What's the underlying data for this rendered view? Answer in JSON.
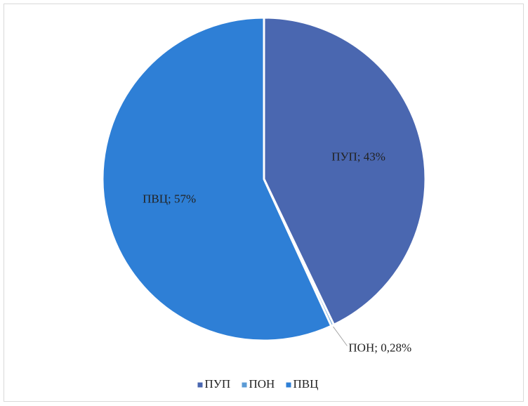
{
  "chart_data": {
    "type": "pie",
    "categories": [
      "ПУП",
      "ПОН",
      "ПВЦ"
    ],
    "values": [
      43,
      0.28,
      57
    ],
    "value_labels": [
      "ПУП; 43%",
      "ПОН; 0,28%",
      "ПВЦ; 57%"
    ],
    "colors": [
      "#4a67b0",
      "#5b9bd5",
      "#2e7fd6"
    ],
    "legend": "bottom"
  }
}
